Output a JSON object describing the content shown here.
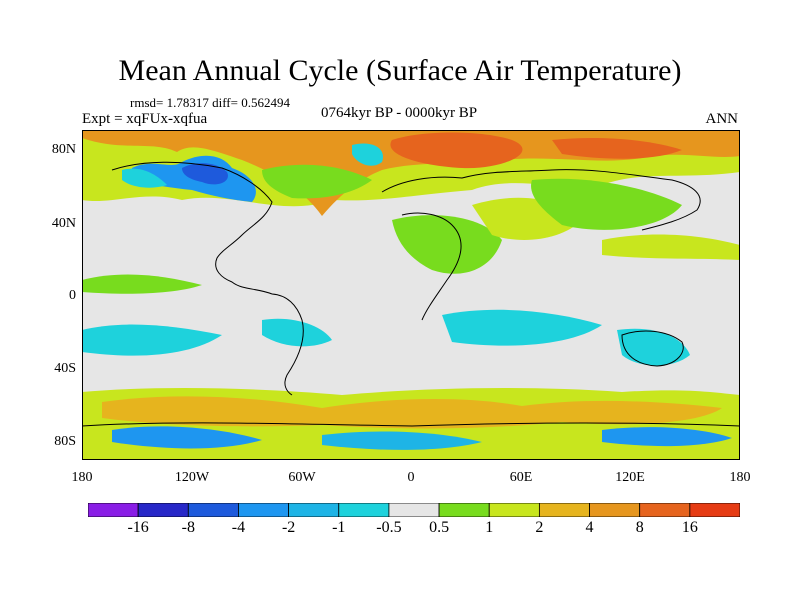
{
  "title": "Mean Annual Cycle (Surface Air Temperature)",
  "stats": "rmsd= 1.78317 diff= 0.562494",
  "period": "0764kyr BP - 0000kyr BP",
  "expt": "Expt = xqFUx-xqfua",
  "season": "ANN",
  "lat_labels": [
    "80N",
    "40N",
    "0",
    "40S",
    "80S"
  ],
  "lon_labels": [
    "180",
    "120W",
    "60W",
    "0",
    "60E",
    "120E",
    "180"
  ],
  "colorbar": {
    "labels": [
      "-16",
      "-8",
      "-4",
      "-2",
      "-1",
      "-0.5",
      "0.5",
      "1",
      "2",
      "4",
      "8",
      "16"
    ],
    "colors": [
      "#8a1ee6",
      "#2828c8",
      "#1e5adc",
      "#1e96f0",
      "#1eb4e6",
      "#1ed2dc",
      "#e6e6e6",
      "#78dc1e",
      "#c8e61e",
      "#e6b41e",
      "#e6961e",
      "#e6641e",
      "#e63c14"
    ]
  },
  "map_colors": {
    "neutral": "#e6e6e6",
    "cyan": "#1ed2dc",
    "lightblue": "#1eb4e6",
    "blue": "#1e96f0",
    "darkblue": "#1e5adc",
    "green": "#78dc1e",
    "yellowgreen": "#c8e61e",
    "gold": "#e6b41e",
    "orange": "#e6961e",
    "darkorange": "#e6641e",
    "red": "#e63c14"
  }
}
